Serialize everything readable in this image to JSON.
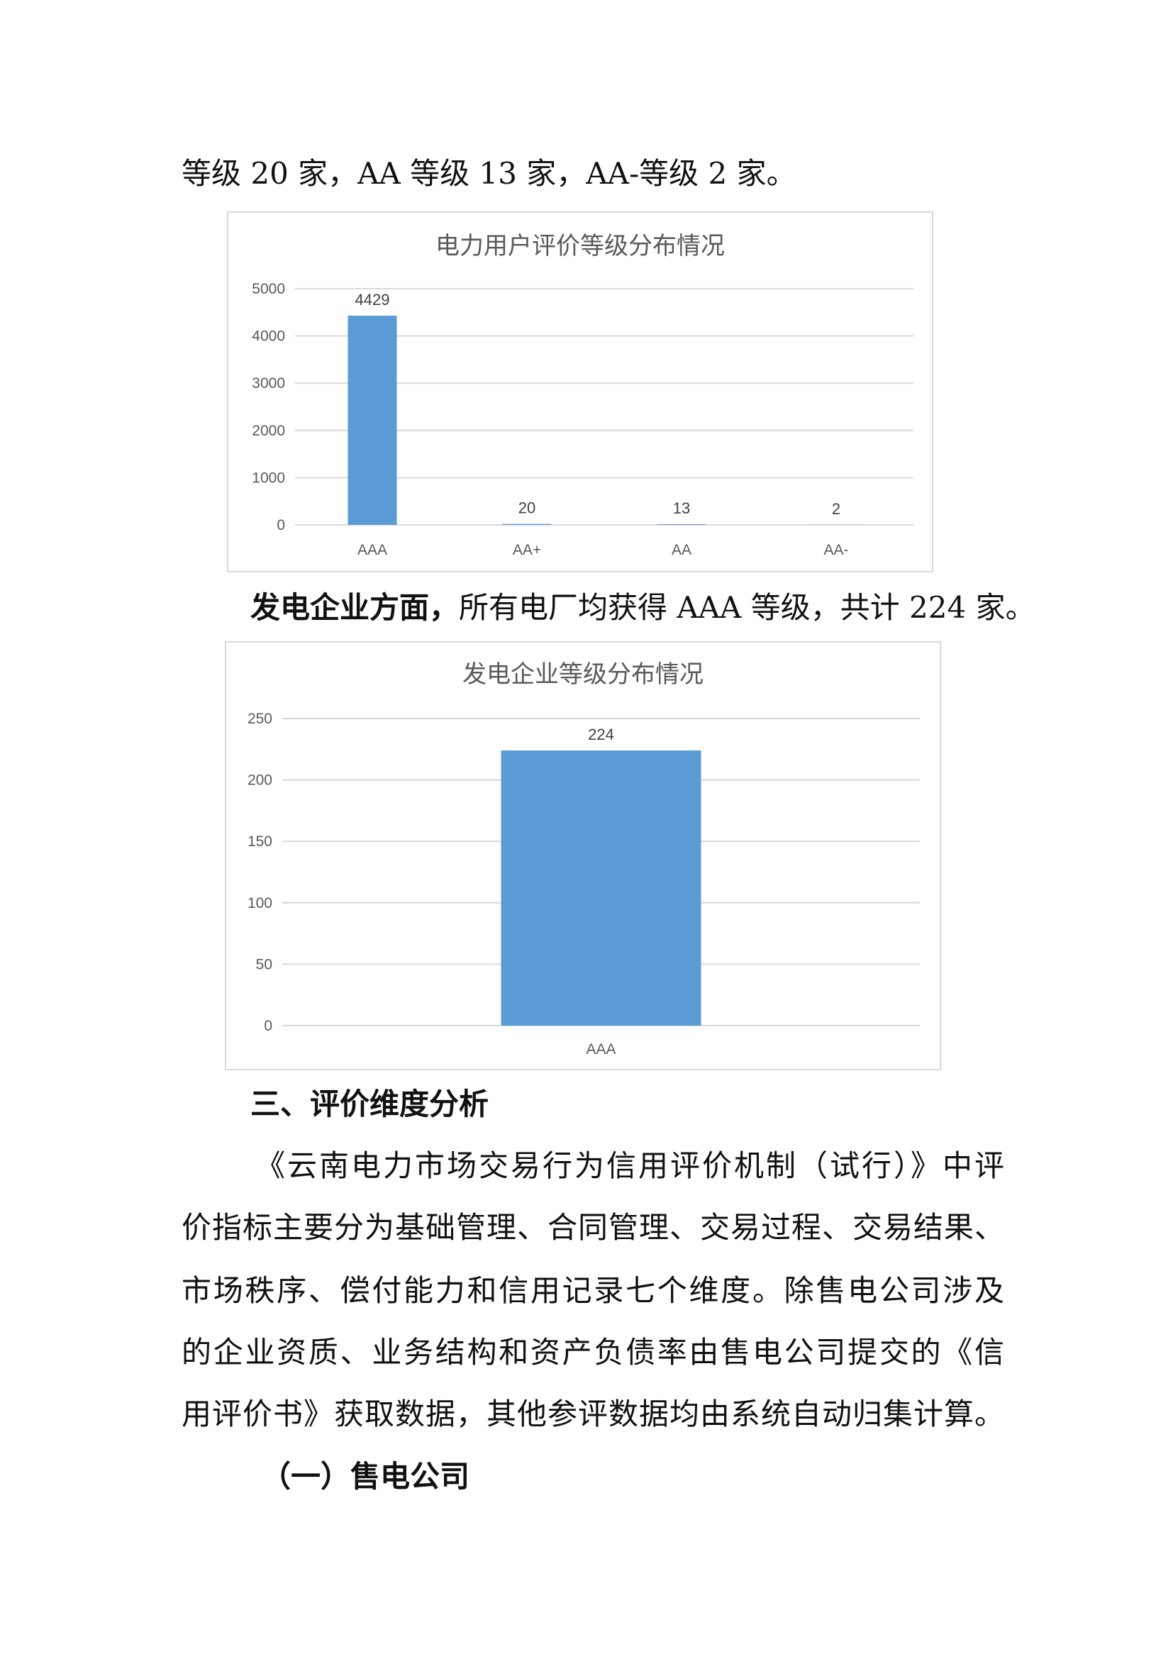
{
  "paragraphs": {
    "intro_tail": "等级 20 家，AA 等级 13 家，AA-等级 2 家。",
    "gen_bold": "发电企业方面，",
    "gen_rest": "所有电厂均获得 AAA 等级，共计 224 家。",
    "section_heading": "三、评价维度分析",
    "body_lines": [
      "《云南电力市场交易行为信用评价机制（试行）》中评",
      "价指标主要分为基础管理、合同管理、交易过程、交易结果、",
      "市场秩序、偿付能力和信用记录七个维度。除售电公司涉及",
      "的企业资质、业务结构和资产负债率由售电公司提交的《信",
      "用评价书》获取数据，其他参评数据均由系统自动归集计算。"
    ],
    "subheading": "（一）售电公司"
  },
  "chart_data": [
    {
      "type": "bar",
      "title": "电力用户评价等级分布情况",
      "categories": [
        "AAA",
        "AA+",
        "AA",
        "AA-"
      ],
      "values": [
        4429,
        20,
        13,
        2
      ],
      "ylim": [
        0,
        5000
      ],
      "yticks": [
        0,
        1000,
        2000,
        3000,
        4000,
        5000
      ],
      "grid": true,
      "bar_color": "#5b9bd5"
    },
    {
      "type": "bar",
      "title": "发电企业等级分布情况",
      "categories": [
        "AAA"
      ],
      "values": [
        224
      ],
      "ylim": [
        0,
        250
      ],
      "yticks": [
        0,
        50,
        100,
        150,
        200,
        250
      ],
      "grid": true,
      "bar_color": "#5b9bd5"
    }
  ]
}
